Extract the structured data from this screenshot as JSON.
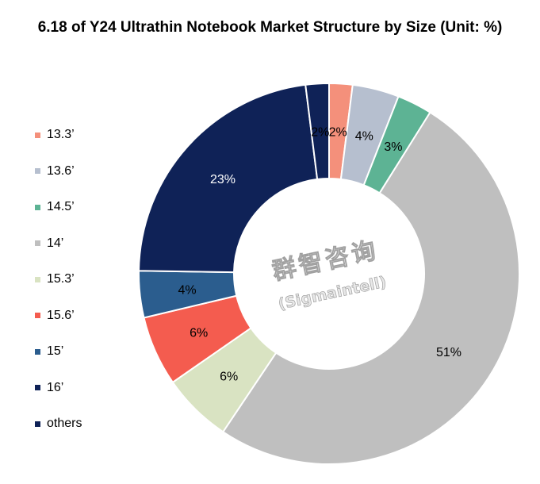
{
  "chart_data": {
    "type": "pie",
    "title": "6.18 of Y24 Ultrathin Notebook Market Structure by Size (Unit: %)",
    "hole": true,
    "categories": [
      "13.3’",
      "13.6’",
      "14.5’",
      "14’",
      "15.3’",
      "15.6’",
      "15’",
      "16’",
      "others"
    ],
    "values": [
      2,
      4,
      3,
      51,
      6,
      6,
      4,
      23,
      2
    ],
    "labels": [
      "2%",
      "4%",
      "3%",
      "51%",
      "6%",
      "6%",
      "4%",
      "23%",
      "2%"
    ],
    "colors": [
      "#f4907b",
      "#b6bfcf",
      "#5db394",
      "#bfbfbf",
      "#d9e3c2",
      "#f45c4f",
      "#2b5d8e",
      "#0f2257",
      "#0f2257"
    ],
    "label_colors": [
      "#000000",
      "#000000",
      "#000000",
      "#000000",
      "#000000",
      "#000000",
      "#000000",
      "#ffffff",
      "#000000"
    ],
    "legend_position": "left"
  },
  "watermark": {
    "line1": "群智咨询",
    "line2": "(Sigmaintell)"
  }
}
